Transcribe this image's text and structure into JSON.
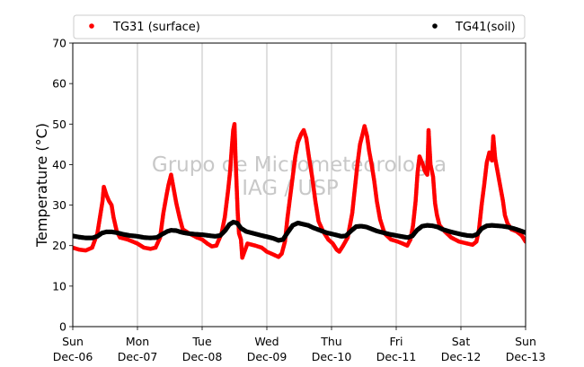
{
  "chart_data": {
    "type": "scatter",
    "title": "",
    "xlabel": "",
    "ylabel": "Temperature (°C)",
    "ylim": [
      0,
      70
    ],
    "yticks": [
      0,
      10,
      20,
      30,
      40,
      50,
      60,
      70
    ],
    "xlim": [
      0,
      7
    ],
    "xticks": [
      {
        "day": "Sun",
        "date": "Dec-06"
      },
      {
        "day": "Mon",
        "date": "Dec-07"
      },
      {
        "day": "Tue",
        "date": "Dec-08"
      },
      {
        "day": "Wed",
        "date": "Dec-09"
      },
      {
        "day": "Thu",
        "date": "Dec-10"
      },
      {
        "day": "Fri",
        "date": "Dec-11"
      },
      {
        "day": "Sat",
        "date": "Dec-12"
      },
      {
        "day": "Sun",
        "date": "Dec-13"
      }
    ],
    "grid": "vertical",
    "legend_position": "top",
    "watermark": [
      "Grupo de Micrometeorologia",
      "IAG / USP"
    ],
    "series": [
      {
        "name": "TG31 (surface)",
        "color": "#ff0000",
        "points": [
          [
            0.0,
            19.5
          ],
          [
            0.1,
            19.0
          ],
          [
            0.2,
            18.8
          ],
          [
            0.3,
            19.5
          ],
          [
            0.38,
            23.0
          ],
          [
            0.42,
            27.0
          ],
          [
            0.46,
            31.0
          ],
          [
            0.48,
            34.5
          ],
          [
            0.52,
            32.5
          ],
          [
            0.56,
            31.0
          ],
          [
            0.6,
            30.0
          ],
          [
            0.63,
            27.0
          ],
          [
            0.68,
            23.5
          ],
          [
            0.73,
            22.0
          ],
          [
            0.85,
            21.5
          ],
          [
            1.0,
            20.5
          ],
          [
            1.1,
            19.5
          ],
          [
            1.2,
            19.2
          ],
          [
            1.28,
            19.5
          ],
          [
            1.35,
            22.0
          ],
          [
            1.4,
            28.0
          ],
          [
            1.45,
            32.5
          ],
          [
            1.48,
            35.0
          ],
          [
            1.52,
            37.5
          ],
          [
            1.56,
            34.0
          ],
          [
            1.6,
            30.5
          ],
          [
            1.65,
            27.0
          ],
          [
            1.7,
            24.0
          ],
          [
            1.8,
            23.0
          ],
          [
            1.92,
            22.0
          ],
          [
            2.0,
            21.5
          ],
          [
            2.08,
            20.5
          ],
          [
            2.15,
            19.8
          ],
          [
            2.22,
            20.0
          ],
          [
            2.3,
            23.0
          ],
          [
            2.35,
            27.0
          ],
          [
            2.4,
            33.5
          ],
          [
            2.43,
            38.0
          ],
          [
            2.46,
            44.5
          ],
          [
            2.48,
            48.5
          ],
          [
            2.5,
            50.0
          ],
          [
            2.52,
            40.0
          ],
          [
            2.55,
            28.0
          ],
          [
            2.57,
            23.0
          ],
          [
            2.6,
            21.5
          ],
          [
            2.62,
            17.0
          ],
          [
            2.7,
            20.5
          ],
          [
            2.82,
            20.0
          ],
          [
            2.92,
            19.5
          ],
          [
            3.0,
            18.5
          ],
          [
            3.1,
            17.8
          ],
          [
            3.18,
            17.2
          ],
          [
            3.23,
            18.0
          ],
          [
            3.28,
            21.0
          ],
          [
            3.32,
            27.0
          ],
          [
            3.36,
            32.0
          ],
          [
            3.4,
            37.0
          ],
          [
            3.44,
            42.0
          ],
          [
            3.48,
            45.5
          ],
          [
            3.53,
            47.5
          ],
          [
            3.57,
            48.5
          ],
          [
            3.61,
            46.5
          ],
          [
            3.65,
            42.0
          ],
          [
            3.7,
            37.0
          ],
          [
            3.75,
            31.0
          ],
          [
            3.8,
            26.0
          ],
          [
            3.87,
            23.5
          ],
          [
            3.95,
            21.5
          ],
          [
            4.02,
            20.5
          ],
          [
            4.08,
            19.0
          ],
          [
            4.12,
            18.5
          ],
          [
            4.18,
            20.0
          ],
          [
            4.25,
            22.0
          ],
          [
            4.32,
            28.0
          ],
          [
            4.36,
            34.0
          ],
          [
            4.4,
            40.0
          ],
          [
            4.44,
            45.0
          ],
          [
            4.48,
            47.5
          ],
          [
            4.51,
            49.5
          ],
          [
            4.55,
            47.0
          ],
          [
            4.58,
            43.5
          ],
          [
            4.62,
            40.0
          ],
          [
            4.66,
            36.0
          ],
          [
            4.7,
            31.0
          ],
          [
            4.75,
            26.5
          ],
          [
            4.82,
            23.0
          ],
          [
            4.92,
            21.5
          ],
          [
            5.02,
            21.0
          ],
          [
            5.1,
            20.5
          ],
          [
            5.17,
            20.0
          ],
          [
            5.22,
            21.5
          ],
          [
            5.26,
            25.0
          ],
          [
            5.3,
            31.0
          ],
          [
            5.33,
            38.0
          ],
          [
            5.36,
            42.0
          ],
          [
            5.4,
            40.5
          ],
          [
            5.44,
            38.5
          ],
          [
            5.48,
            37.5
          ],
          [
            5.5,
            48.5
          ],
          [
            5.53,
            40.0
          ],
          [
            5.57,
            37.0
          ],
          [
            5.6,
            30.5
          ],
          [
            5.63,
            27.5
          ],
          [
            5.67,
            25.0
          ],
          [
            5.75,
            23.5
          ],
          [
            5.85,
            22.0
          ],
          [
            5.97,
            21.0
          ],
          [
            6.1,
            20.5
          ],
          [
            6.18,
            20.2
          ],
          [
            6.24,
            21.0
          ],
          [
            6.28,
            24.0
          ],
          [
            6.32,
            30.0
          ],
          [
            6.36,
            35.0
          ],
          [
            6.4,
            40.5
          ],
          [
            6.44,
            43.0
          ],
          [
            6.48,
            41.0
          ],
          [
            6.5,
            47.0
          ],
          [
            6.53,
            41.5
          ],
          [
            6.57,
            38.0
          ],
          [
            6.61,
            34.5
          ],
          [
            6.65,
            31.0
          ],
          [
            6.68,
            27.5
          ],
          [
            6.72,
            25.5
          ],
          [
            6.78,
            24.0
          ],
          [
            6.86,
            23.5
          ],
          [
            6.94,
            22.5
          ],
          [
            6.98,
            21.5
          ],
          [
            7.0,
            21.0
          ]
        ]
      },
      {
        "name": "TG41(soil)",
        "color": "#000000",
        "points": [
          [
            0.0,
            22.4
          ],
          [
            0.1,
            22.1
          ],
          [
            0.2,
            21.9
          ],
          [
            0.3,
            21.9
          ],
          [
            0.38,
            22.3
          ],
          [
            0.45,
            23.1
          ],
          [
            0.52,
            23.4
          ],
          [
            0.6,
            23.4
          ],
          [
            0.68,
            23.2
          ],
          [
            0.78,
            22.8
          ],
          [
            0.88,
            22.5
          ],
          [
            1.0,
            22.3
          ],
          [
            1.1,
            22.0
          ],
          [
            1.2,
            21.9
          ],
          [
            1.3,
            22.0
          ],
          [
            1.38,
            22.8
          ],
          [
            1.46,
            23.5
          ],
          [
            1.52,
            23.8
          ],
          [
            1.6,
            23.7
          ],
          [
            1.68,
            23.3
          ],
          [
            1.78,
            23.0
          ],
          [
            1.9,
            22.8
          ],
          [
            2.0,
            22.7
          ],
          [
            2.1,
            22.5
          ],
          [
            2.2,
            22.3
          ],
          [
            2.28,
            22.5
          ],
          [
            2.36,
            23.8
          ],
          [
            2.42,
            25.2
          ],
          [
            2.48,
            25.8
          ],
          [
            2.54,
            25.6
          ],
          [
            2.6,
            24.3
          ],
          [
            2.68,
            23.5
          ],
          [
            2.8,
            23.0
          ],
          [
            2.92,
            22.5
          ],
          [
            3.0,
            22.2
          ],
          [
            3.1,
            21.8
          ],
          [
            3.18,
            21.3
          ],
          [
            3.25,
            21.5
          ],
          [
            3.32,
            23.2
          ],
          [
            3.4,
            25.0
          ],
          [
            3.48,
            25.6
          ],
          [
            3.56,
            25.3
          ],
          [
            3.64,
            25.0
          ],
          [
            3.72,
            24.4
          ],
          [
            3.82,
            23.8
          ],
          [
            3.92,
            23.2
          ],
          [
            4.0,
            22.9
          ],
          [
            4.08,
            22.6
          ],
          [
            4.15,
            22.3
          ],
          [
            4.22,
            22.4
          ],
          [
            4.3,
            23.6
          ],
          [
            4.38,
            24.7
          ],
          [
            4.46,
            24.8
          ],
          [
            4.54,
            24.6
          ],
          [
            4.62,
            24.1
          ],
          [
            4.7,
            23.6
          ],
          [
            4.8,
            23.2
          ],
          [
            4.9,
            22.8
          ],
          [
            5.0,
            22.5
          ],
          [
            5.1,
            22.2
          ],
          [
            5.18,
            22.0
          ],
          [
            5.25,
            22.4
          ],
          [
            5.32,
            23.8
          ],
          [
            5.4,
            24.8
          ],
          [
            5.48,
            25.0
          ],
          [
            5.56,
            24.9
          ],
          [
            5.64,
            24.6
          ],
          [
            5.72,
            24.0
          ],
          [
            5.82,
            23.5
          ],
          [
            5.92,
            23.1
          ],
          [
            6.0,
            22.8
          ],
          [
            6.1,
            22.5
          ],
          [
            6.18,
            22.4
          ],
          [
            6.25,
            22.8
          ],
          [
            6.32,
            24.2
          ],
          [
            6.4,
            24.9
          ],
          [
            6.48,
            25.0
          ],
          [
            6.56,
            24.9
          ],
          [
            6.64,
            24.8
          ],
          [
            6.72,
            24.6
          ],
          [
            6.8,
            24.3
          ],
          [
            6.88,
            23.9
          ],
          [
            6.95,
            23.5
          ],
          [
            7.0,
            23.2
          ]
        ]
      }
    ]
  }
}
